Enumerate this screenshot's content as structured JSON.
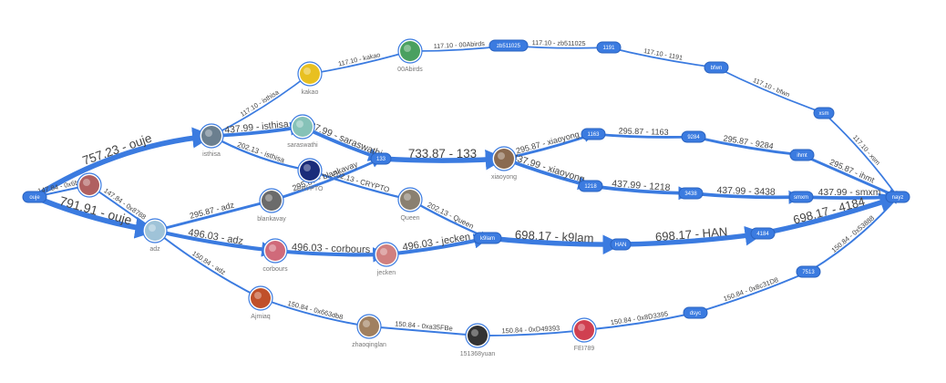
{
  "accent": "#3b7be0",
  "nodes": {
    "ouje": {
      "label": "ouje",
      "kind": "pill"
    },
    "isthisa": {
      "label": "isthisa",
      "kind": "avatar",
      "color": "#6b7f8f"
    },
    "adz": {
      "label": "adz",
      "kind": "avatar",
      "color": "#9fc3d8"
    },
    "n_6b": {
      "label": "",
      "kind": "avatar",
      "color": "#b06060"
    },
    "kakao": {
      "label": "kakao",
      "kind": "avatar",
      "color": "#e8c020"
    },
    "00Abirds": {
      "label": "00Abirds",
      "kind": "avatar",
      "color": "#4aa060"
    },
    "saraswathi": {
      "label": "saraswathi",
      "kind": "avatar",
      "color": "#86c2b8"
    },
    "CRYPTO": {
      "label": "CRYPTO",
      "kind": "avatar",
      "color": "#1a2c7a"
    },
    "blankavay": {
      "label": "blankavay",
      "kind": "avatar",
      "color": "#6b6b6b"
    },
    "corbours": {
      "label": "corbours",
      "kind": "avatar",
      "color": "#d06a7a"
    },
    "Ajmiaq": {
      "label": "Ajmiaq",
      "kind": "avatar",
      "color": "#c0502a"
    },
    "Queen": {
      "label": "Queen",
      "kind": "avatar",
      "color": "#8a8070"
    },
    "jecken": {
      "label": "jecken",
      "kind": "avatar",
      "color": "#d08080"
    },
    "zhaoqinglan": {
      "label": "zhaoqinglan",
      "kind": "avatar",
      "color": "#a08060"
    },
    "151368yuan": {
      "label": "151368yuan",
      "kind": "avatar",
      "color": "#333333"
    },
    "FEI789": {
      "label": "FEI789",
      "kind": "avatar",
      "color": "#d04050"
    },
    "xiaoyong": {
      "label": "xiaoyong",
      "kind": "avatar",
      "color": "#8a6a50"
    },
    "zb511025": {
      "label": "zb511025",
      "kind": "pill"
    },
    "1191": {
      "label": "1191",
      "kind": "pill"
    },
    "bfwn": {
      "label": "bfwn",
      "kind": "pill"
    },
    "xsm": {
      "label": "xsm",
      "kind": "pill"
    },
    "133": {
      "label": "133",
      "kind": "pill"
    },
    "1163": {
      "label": "1163",
      "kind": "pill"
    },
    "9284": {
      "label": "9284",
      "kind": "pill"
    },
    "ihmt": {
      "label": "ihmt",
      "kind": "pill"
    },
    "1218": {
      "label": "1218",
      "kind": "pill"
    },
    "3438": {
      "label": "3438",
      "kind": "pill"
    },
    "smxm": {
      "label": "smxm",
      "kind": "pill"
    },
    "k9lam": {
      "label": "k9lam",
      "kind": "pill"
    },
    "HAN": {
      "label": "HAN",
      "kind": "pill"
    },
    "4184": {
      "label": "4184",
      "kind": "pill"
    },
    "dsyc": {
      "label": "dsyc",
      "kind": "pill"
    },
    "7513": {
      "label": "7513",
      "kind": "pill"
    },
    "nayz": {
      "label": "nayz",
      "kind": "pill"
    }
  },
  "edges": [
    {
      "from": "ouje",
      "to": "isthisa",
      "label": "757.23 - ouje",
      "weight": 757.23
    },
    {
      "from": "ouje",
      "to": "adz",
      "label": "791.91 - ouje",
      "weight": 791.91
    },
    {
      "from": "ouje",
      "to": "n_6b",
      "label": "147.84 - 0x6b5f",
      "weight": 147.84
    },
    {
      "from": "n_6b",
      "to": "adz",
      "label": "147.84 - 0x8788",
      "weight": 147.84
    },
    {
      "from": "isthisa",
      "to": "kakao",
      "label": "117.10 - isthisa",
      "weight": 117.1
    },
    {
      "from": "isthisa",
      "to": "saraswathi",
      "label": "437.99 - isthisa",
      "weight": 437.99
    },
    {
      "from": "isthisa",
      "to": "CRYPTO",
      "label": "202.13 - isthisa",
      "weight": 202.13
    },
    {
      "from": "kakao",
      "to": "00Abirds",
      "label": "117.10 - kakao",
      "weight": 117.1
    },
    {
      "from": "00Abirds",
      "to": "zb511025",
      "label": "117.10 - 00Abirds",
      "weight": 117.1
    },
    {
      "from": "zb511025",
      "to": "1191",
      "label": "117.10 - zb511025",
      "weight": 117.1
    },
    {
      "from": "1191",
      "to": "bfwn",
      "label": "117.10 - 1191",
      "weight": 117.1
    },
    {
      "from": "bfwn",
      "to": "xsm",
      "label": "117.10 - bfwn",
      "weight": 117.1
    },
    {
      "from": "xsm",
      "to": "nayz",
      "label": "117.10 - xsm",
      "weight": 117.1
    },
    {
      "from": "saraswathi",
      "to": "133",
      "label": "437.99 - saraswathi",
      "weight": 437.99
    },
    {
      "from": "adz",
      "to": "blankavay",
      "label": "295.87 - adz",
      "weight": 295.87
    },
    {
      "from": "blankavay",
      "to": "133",
      "label": "295.87 - blankavay",
      "weight": 295.87
    },
    {
      "from": "133",
      "to": "xiaoyong",
      "label": "733.87 - 133",
      "weight": 733.87
    },
    {
      "from": "CRYPTO",
      "to": "Queen",
      "label": "202.13 - CRYPTO",
      "weight": 202.13
    },
    {
      "from": "Queen",
      "to": "k9lam",
      "label": "202.13 - Queen",
      "weight": 202.13
    },
    {
      "from": "adz",
      "to": "corbours",
      "label": "496.03 - adz",
      "weight": 496.03
    },
    {
      "from": "corbours",
      "to": "jecken",
      "label": "496.03 - corbours",
      "weight": 496.03
    },
    {
      "from": "jecken",
      "to": "k9lam",
      "label": "496.03 - jecken",
      "weight": 496.03
    },
    {
      "from": "k9lam",
      "to": "HAN",
      "label": "698.17 - k9lam",
      "weight": 698.17
    },
    {
      "from": "HAN",
      "to": "4184",
      "label": "698.17 - HAN",
      "weight": 698.17
    },
    {
      "from": "4184",
      "to": "nayz",
      "label": "698.17 - 4184",
      "weight": 698.17
    },
    {
      "from": "xiaoyong",
      "to": "1163",
      "label": "295.87 - xiaoyong",
      "weight": 295.87
    },
    {
      "from": "1163",
      "to": "9284",
      "label": "295.87 - 1163",
      "weight": 295.87
    },
    {
      "from": "9284",
      "to": "ihmt",
      "label": "295.87 - 9284",
      "weight": 295.87
    },
    {
      "from": "ihmt",
      "to": "nayz",
      "label": "295.87 - ihmt",
      "weight": 295.87
    },
    {
      "from": "xiaoyong",
      "to": "1218",
      "label": "437.99 - xiaoyong",
      "weight": 437.99
    },
    {
      "from": "1218",
      "to": "3438",
      "label": "437.99 - 1218",
      "weight": 437.99
    },
    {
      "from": "3438",
      "to": "smxm",
      "label": "437.99 - 3438",
      "weight": 437.99
    },
    {
      "from": "smxm",
      "to": "nayz",
      "label": "437.99 - smxm",
      "weight": 437.99
    },
    {
      "from": "adz",
      "to": "Ajmiaq",
      "label": "150.84 - adz",
      "weight": 150.84
    },
    {
      "from": "Ajmiaq",
      "to": "zhaoqinglan",
      "label": "150.84 - 0x663db8",
      "weight": 150.84
    },
    {
      "from": "zhaoqinglan",
      "to": "151368yuan",
      "label": "150.84 - 0xa35FBe",
      "weight": 150.84
    },
    {
      "from": "151368yuan",
      "to": "FEI789",
      "label": "150.84 - 0xD49393",
      "weight": 150.84
    },
    {
      "from": "FEI789",
      "to": "dsyc",
      "label": "150.84 - 0x8D3395",
      "weight": 150.84
    },
    {
      "from": "dsyc",
      "to": "7513",
      "label": "150.84 - 0x8c31D8",
      "weight": 150.84
    },
    {
      "from": "7513",
      "to": "nayz",
      "label": "150.84 - 0x53888",
      "weight": 150.84
    }
  ]
}
